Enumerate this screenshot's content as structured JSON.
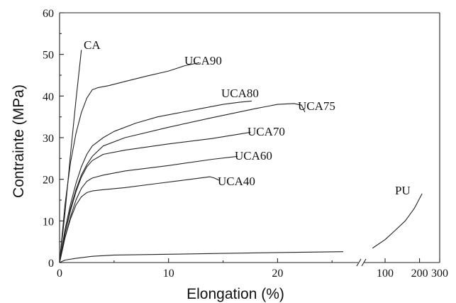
{
  "chart_data": {
    "type": "line",
    "xlabel": "Elongation (%)",
    "ylabel": "Contrainte (MPa)",
    "ylim": [
      0,
      60
    ],
    "xlim_left": [
      0,
      27
    ],
    "x_break": true,
    "xlim_right_log": [
      70,
      300
    ],
    "grid": false,
    "legend": "labels placed next to curves",
    "y_ticks": [
      "0",
      "10",
      "20",
      "30",
      "40",
      "50",
      "60"
    ],
    "x_ticks_left": [
      "0",
      "10",
      "20"
    ],
    "x_ticks_right": [
      "100",
      "200",
      "300"
    ],
    "series": [
      {
        "name": "CA",
        "segment": "left",
        "points": [
          [
            0,
            0
          ],
          [
            0.5,
            12
          ],
          [
            1.0,
            26
          ],
          [
            1.5,
            39
          ],
          [
            2.0,
            51
          ]
        ]
      },
      {
        "name": "UCA90",
        "segment": "left",
        "points": [
          [
            0,
            0
          ],
          [
            0.5,
            14
          ],
          [
            1.0,
            24
          ],
          [
            1.5,
            31
          ],
          [
            2.0,
            36
          ],
          [
            2.5,
            39.5
          ],
          [
            3.0,
            41.5
          ],
          [
            3.5,
            42
          ],
          [
            4.5,
            42.5
          ],
          [
            6,
            43.5
          ],
          [
            8,
            44.8
          ],
          [
            10,
            46
          ],
          [
            11.5,
            47.3
          ],
          [
            12.8,
            48
          ]
        ]
      },
      {
        "name": "UCA80",
        "segment": "left",
        "points": [
          [
            0,
            0
          ],
          [
            0.5,
            8
          ],
          [
            1.0,
            14
          ],
          [
            1.5,
            19
          ],
          [
            2.0,
            23
          ],
          [
            2.5,
            26
          ],
          [
            3.0,
            28
          ],
          [
            4,
            30
          ],
          [
            5,
            31.5
          ],
          [
            7,
            33.5
          ],
          [
            9,
            35
          ],
          [
            11,
            36
          ],
          [
            13,
            37
          ],
          [
            15,
            38
          ],
          [
            16.5,
            38.5
          ],
          [
            17.6,
            38.8
          ]
        ]
      },
      {
        "name": "UCA75",
        "segment": "left",
        "points": [
          [
            0,
            0
          ],
          [
            0.5,
            7
          ],
          [
            1.0,
            13
          ],
          [
            1.5,
            17.5
          ],
          [
            2.0,
            21
          ],
          [
            2.5,
            23.5
          ],
          [
            3.0,
            25.5
          ],
          [
            4,
            28
          ],
          [
            6,
            30
          ],
          [
            10,
            32.5
          ],
          [
            14,
            34.8
          ],
          [
            18,
            37
          ],
          [
            20,
            38
          ],
          [
            21.5,
            38.2
          ],
          [
            22.2,
            37.8
          ],
          [
            22.5,
            36.2
          ]
        ]
      },
      {
        "name": "UCA70",
        "segment": "left",
        "points": [
          [
            0,
            0
          ],
          [
            0.5,
            7
          ],
          [
            1.0,
            12.5
          ],
          [
            1.5,
            17
          ],
          [
            2.0,
            20.5
          ],
          [
            2.5,
            23
          ],
          [
            3.0,
            24.5
          ],
          [
            4,
            26
          ],
          [
            6,
            27
          ],
          [
            10,
            28.5
          ],
          [
            14,
            29.8
          ],
          [
            17.5,
            31.3
          ]
        ]
      },
      {
        "name": "UCA60",
        "segment": "left",
        "points": [
          [
            0,
            0
          ],
          [
            0.5,
            6
          ],
          [
            1.0,
            11
          ],
          [
            1.5,
            15
          ],
          [
            2.0,
            17.8
          ],
          [
            2.5,
            19.5
          ],
          [
            3.0,
            20.3
          ],
          [
            4,
            21
          ],
          [
            6,
            22
          ],
          [
            10,
            23.3
          ],
          [
            14,
            24.8
          ],
          [
            16.3,
            25.5
          ]
        ]
      },
      {
        "name": "UCA40",
        "segment": "left",
        "points": [
          [
            0,
            0
          ],
          [
            0.5,
            6
          ],
          [
            1.0,
            10.5
          ],
          [
            1.5,
            13.8
          ],
          [
            2.0,
            15.8
          ],
          [
            2.5,
            16.8
          ],
          [
            3.0,
            17.2
          ],
          [
            4,
            17.5
          ],
          [
            6,
            18
          ],
          [
            9,
            19
          ],
          [
            12,
            20
          ],
          [
            13.8,
            20.6
          ],
          [
            14.2,
            20.3
          ],
          [
            14.6,
            19.8
          ]
        ]
      },
      {
        "name": "PU",
        "segment": "both",
        "points_left": [
          [
            0,
            0
          ],
          [
            0.5,
            0.6
          ],
          [
            1.5,
            1.0
          ],
          [
            3,
            1.5
          ],
          [
            5,
            1.8
          ],
          [
            10,
            2.0
          ],
          [
            15,
            2.2
          ],
          [
            20,
            2.4
          ],
          [
            26,
            2.6
          ]
        ],
        "points_right": [
          [
            78,
            3.5
          ],
          [
            100,
            5.5
          ],
          [
            120,
            7.5
          ],
          [
            150,
            10
          ],
          [
            180,
            13
          ],
          [
            210,
            16.5
          ]
        ]
      }
    ]
  }
}
